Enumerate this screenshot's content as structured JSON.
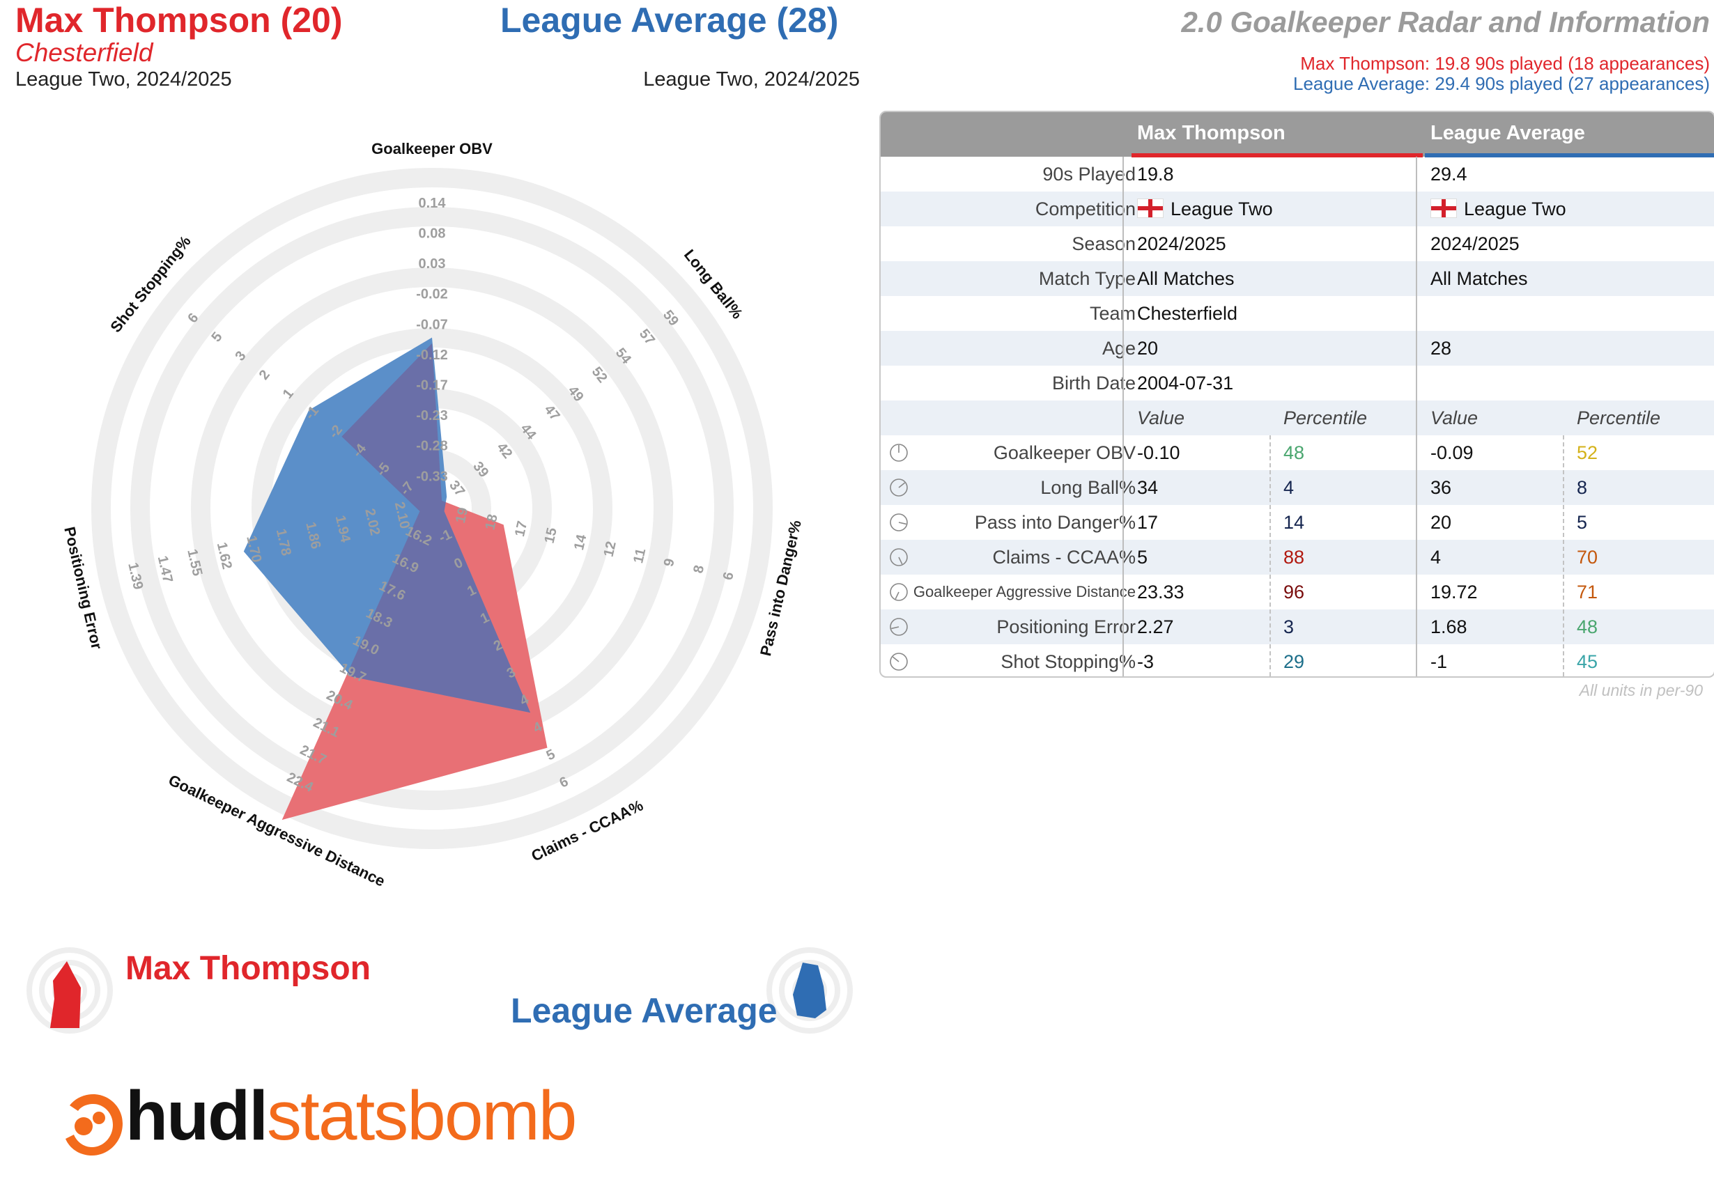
{
  "header": {
    "player_title": "Max Thompson (20)",
    "player_club": "Chesterfield",
    "player_league": "League Two, 2024/2025",
    "avg_title": "League Average (28)",
    "avg_league": "League Two, 2024/2025",
    "report_title": "2.0 Goalkeeper Radar and Information",
    "player_meta": "Max Thompson: 19.8 90s played (18 appearances)",
    "avg_meta": "League Average: 29.4 90s played (27 appearances)"
  },
  "colors": {
    "player": "#e0262b",
    "average": "#2f6db3",
    "player_fill": "#e87075",
    "average_fill": "#5b8fc9",
    "overlap_fill": "#6a6fa8",
    "ring": "#eeeeee",
    "header_gray": "#9b9b9b"
  },
  "chart_data": {
    "type": "radar",
    "axes": [
      {
        "label": "Goalkeeper OBV",
        "ticks": [
          "-0.33",
          "-0.28",
          "-0.23",
          "-0.17",
          "-0.12",
          "-0.07",
          "-0.02",
          "0.03",
          "0.08",
          "0.14"
        ],
        "player": -0.1,
        "average": -0.09
      },
      {
        "label": "Long Ball%",
        "ticks": [
          "37",
          "39",
          "42",
          "44",
          "47",
          "49",
          "52",
          "54",
          "57",
          "59"
        ],
        "player": 34,
        "average": 36
      },
      {
        "label": "Pass into Danger%",
        "ticks": [
          "19",
          "18",
          "17",
          "15",
          "14",
          "12",
          "11",
          "9",
          "8",
          "6"
        ],
        "player": 17,
        "average": 20
      },
      {
        "label": "Claims - CCAA%",
        "ticks": [
          "-1",
          "0",
          "1",
          "1",
          "2",
          "3",
          "4",
          "4",
          "5",
          "6"
        ],
        "player": 5,
        "average": 4
      },
      {
        "label": "Goalkeeper Aggressive Distance",
        "ticks": [
          "16.2",
          "16.9",
          "17.6",
          "18.3",
          "19.0",
          "19.7",
          "20.4",
          "21.1",
          "21.7",
          "22.4"
        ],
        "player": 23.33,
        "average": 19.72
      },
      {
        "label": "Positioning Error",
        "ticks": [
          "2.10",
          "2.02",
          "1.94",
          "1.86",
          "1.78",
          "1.70",
          "1.62",
          "1.55",
          "1.47",
          "1.39"
        ],
        "player": 2.27,
        "average": 1.68
      },
      {
        "label": "Shot Stopping%",
        "ticks": [
          "-7",
          "-5",
          "-4",
          "-2",
          "-1",
          "1",
          "2",
          "3",
          "5",
          "6"
        ],
        "player": -3,
        "average": -1
      }
    ],
    "series": [
      {
        "name": "Max Thompson",
        "values": [
          -0.1,
          34,
          17,
          5,
          23.33,
          2.27,
          -3
        ]
      },
      {
        "name": "League Average",
        "values": [
          -0.09,
          36,
          20,
          4,
          19.72,
          1.68,
          -1
        ]
      }
    ]
  },
  "table": {
    "col_player": "Max Thompson",
    "col_average": "League Average",
    "info_rows": [
      {
        "label": "90s Played",
        "player": "19.8",
        "average": "29.4"
      },
      {
        "label": "Competition",
        "player": "League Two",
        "average": "League Two"
      },
      {
        "label": "Season",
        "player": "2024/2025",
        "average": "2024/2025"
      },
      {
        "label": "Match Type",
        "player": "All Matches",
        "average": "All Matches"
      },
      {
        "label": "Team",
        "player": "Chesterfield",
        "average": ""
      },
      {
        "label": "Age",
        "player": "20",
        "average": "28"
      },
      {
        "label": "Birth Date",
        "player": "2004-07-31",
        "average": ""
      }
    ],
    "sub_value": "Value",
    "sub_percentile": "Percentile",
    "metric_rows": [
      {
        "label": "Goalkeeper OBV",
        "icon": "gauge-icon",
        "p_value": "-0.10",
        "p_pct": "48",
        "p_color": "#4aa66f",
        "a_value": "-0.09",
        "a_pct": "52",
        "a_color": "#d4b21a"
      },
      {
        "label": "Long Ball%",
        "icon": "gauge-icon",
        "p_value": "34",
        "p_pct": "4",
        "p_color": "#15254f",
        "a_value": "36",
        "a_pct": "8",
        "a_color": "#15254f"
      },
      {
        "label": "Pass into Danger%",
        "icon": "gauge-icon",
        "p_value": "17",
        "p_pct": "14",
        "p_color": "#15254f",
        "a_value": "20",
        "a_pct": "5",
        "a_color": "#15254f"
      },
      {
        "label": "Claims - CCAA%",
        "icon": "gauge-icon",
        "p_value": "5",
        "p_pct": "88",
        "p_color": "#b1180f",
        "a_value": "4",
        "a_pct": "70",
        "a_color": "#c4580d"
      },
      {
        "label": "Goalkeeper Aggressive Distance",
        "icon": "gauge-icon",
        "p_value": "23.33",
        "p_pct": "96",
        "p_color": "#7a0d0d",
        "a_value": "19.72",
        "a_pct": "71",
        "a_color": "#c4580d"
      },
      {
        "label": "Positioning Error",
        "icon": "gauge-icon",
        "p_value": "2.27",
        "p_pct": "3",
        "p_color": "#15254f",
        "a_value": "1.68",
        "a_pct": "48",
        "a_color": "#4aa66f"
      },
      {
        "label": "Shot Stopping%",
        "icon": "gauge-icon",
        "p_value": "-3",
        "p_pct": "29",
        "p_color": "#1d6f8a",
        "a_value": "-1",
        "a_pct": "45",
        "a_color": "#3aa5a8"
      }
    ],
    "units_note": "All units in per-90"
  },
  "legend": {
    "player": "Max Thompson",
    "average": "League Average"
  },
  "logo": {
    "part1": "hudl",
    "part2": "statsbomb"
  }
}
